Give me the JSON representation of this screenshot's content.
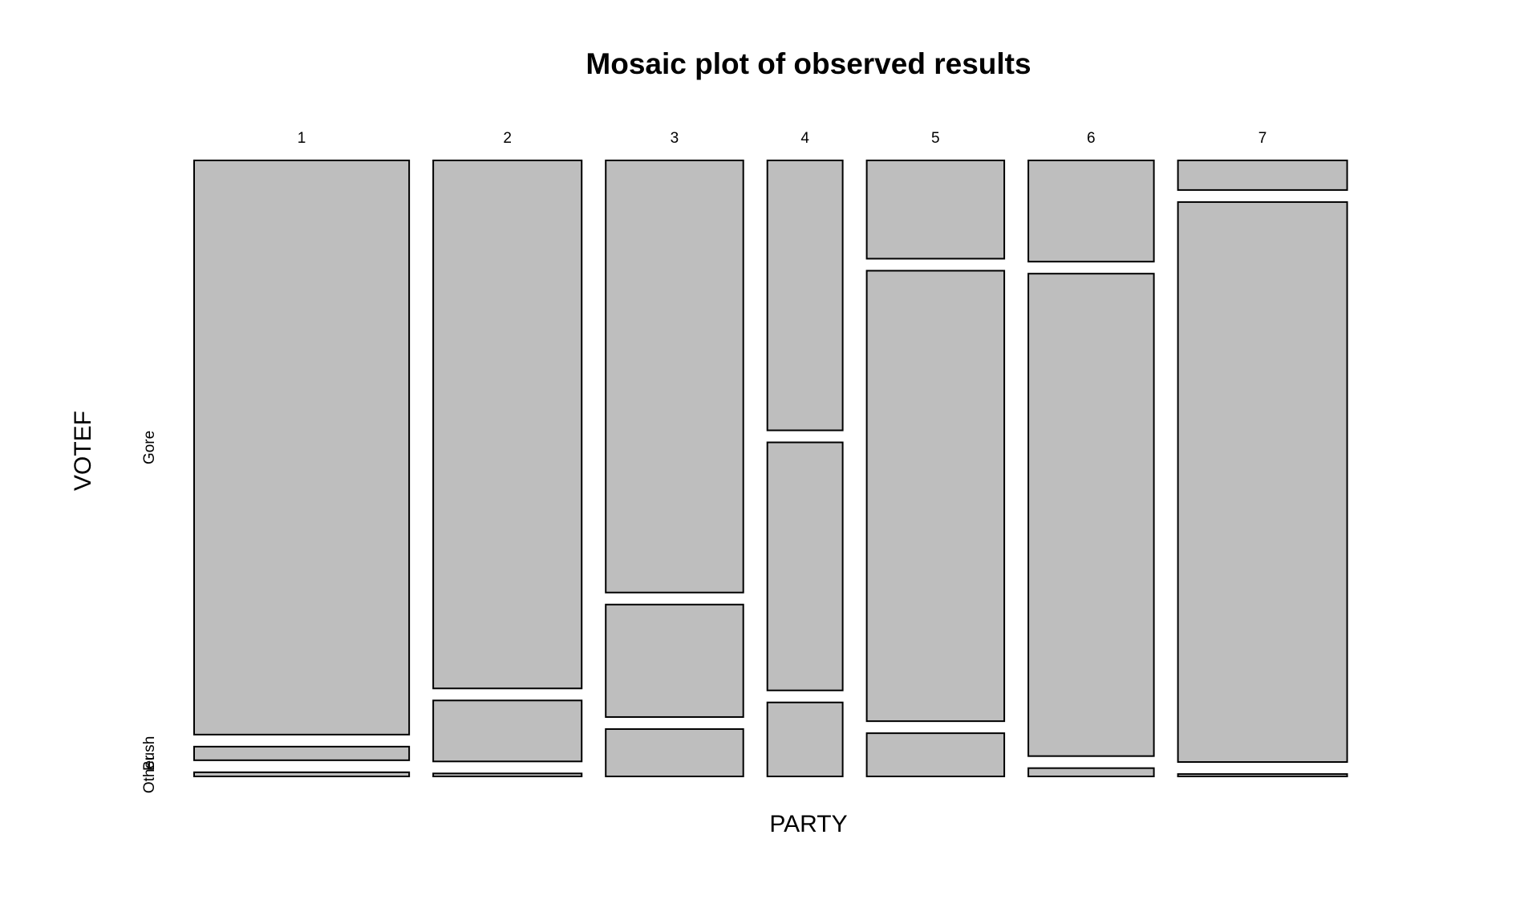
{
  "chart_data": {
    "type": "mosaic",
    "title": "Mosaic plot of observed results",
    "xlabel": "PARTY",
    "ylabel": "VOTEF",
    "categories": [
      "1",
      "2",
      "3",
      "4",
      "5",
      "6",
      "7"
    ],
    "column_shares": [
      0.197,
      0.136,
      0.126,
      0.069,
      0.126,
      0.115,
      0.155
    ],
    "vote_levels": [
      "Other",
      "Bush",
      "Gore"
    ],
    "series": [
      {
        "name": "Other",
        "values": [
          0.007,
          0.005,
          0.08,
          0.125,
          0.073,
          0.014,
          0.004
        ]
      },
      {
        "name": "Bush",
        "values": [
          0.023,
          0.103,
          0.19,
          0.419,
          0.761,
          0.815,
          0.946
        ]
      },
      {
        "name": "Gore",
        "values": [
          0.97,
          0.892,
          0.73,
          0.456,
          0.166,
          0.171,
          0.05
        ]
      }
    ],
    "fill_color": "#bebebe",
    "stroke_color": "#000000"
  }
}
